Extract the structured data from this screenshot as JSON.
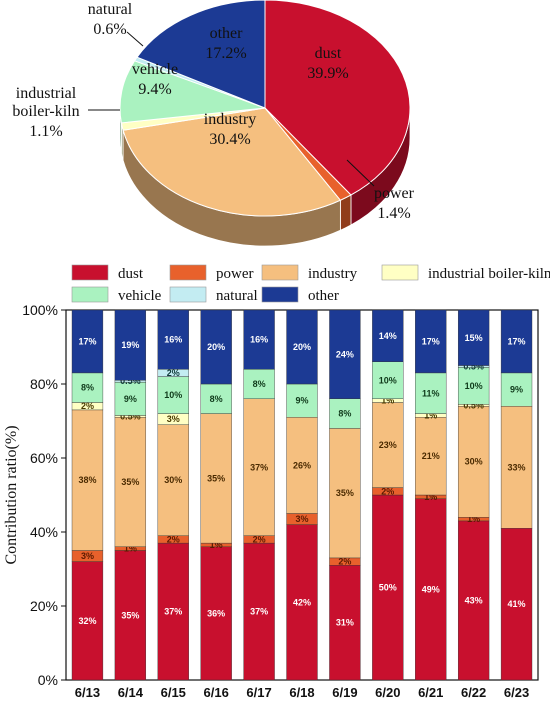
{
  "colors": {
    "dust": "#c8102e",
    "power": "#e8612c",
    "industry": "#f5bf7f",
    "industrial boiler-kiln": "#ffffc4",
    "vehicle": "#aaf2c0",
    "natural": "#c3ecf2",
    "other": "#1c3a94"
  },
  "chart_data": [
    {
      "type": "pie",
      "slices": [
        {
          "name": "dust",
          "label": "dust",
          "value_label": "39.9%",
          "value": 39.9
        },
        {
          "name": "power",
          "label": "power",
          "value_label": "1.4%",
          "value": 1.4
        },
        {
          "name": "industry",
          "label": "industry",
          "value_label": "30.4%",
          "value": 30.4
        },
        {
          "name": "industrial boiler-kiln",
          "label": "industrial boiler-kiln",
          "value_label": "1.1%",
          "value": 1.1
        },
        {
          "name": "vehicle",
          "label": "vehicle",
          "value_label": "9.4%",
          "value": 9.4
        },
        {
          "name": "natural",
          "label": "natural",
          "value_label": "0.6%",
          "value": 0.6
        },
        {
          "name": "other",
          "label": "other",
          "value_label": "17.2%",
          "value": 17.2
        }
      ]
    },
    {
      "type": "bar",
      "stacked": true,
      "ylabel": "Contribution ratio(%)",
      "ylim": [
        0,
        100
      ],
      "yticks": [
        "0%",
        "20%",
        "40%",
        "60%",
        "80%",
        "100%"
      ],
      "categories": [
        "6/13",
        "6/14",
        "6/15",
        "6/16",
        "6/17",
        "6/18",
        "6/19",
        "6/20",
        "6/21",
        "6/22",
        "6/23"
      ],
      "legend": [
        "dust",
        "power",
        "industry",
        "industrial boiler-kiln",
        "vehicle",
        "natural",
        "other"
      ],
      "series": [
        {
          "name": "dust",
          "values": [
            32,
            35,
            37,
            36,
            37,
            42,
            31,
            50,
            49,
            43,
            41
          ],
          "labels": [
            "32%",
            "35%",
            "37%",
            "36%",
            "37%",
            "42%",
            "31%",
            "50%",
            "49%",
            "43%",
            "41%"
          ]
        },
        {
          "name": "power",
          "values": [
            3,
            1,
            2,
            1,
            2,
            3,
            2,
            2,
            1,
            1,
            0
          ],
          "labels": [
            "3%",
            "1%",
            "2%",
            "1%",
            "2%",
            "3%",
            "2%",
            "2%",
            "1%",
            "1%",
            ""
          ]
        },
        {
          "name": "industry",
          "values": [
            38,
            35,
            30,
            35,
            37,
            26,
            35,
            23,
            21,
            30,
            33
          ],
          "labels": [
            "38%",
            "35%",
            "30%",
            "35%",
            "37%",
            "26%",
            "35%",
            "23%",
            "21%",
            "30%",
            "33%"
          ]
        },
        {
          "name": "industrial boiler-kiln",
          "values": [
            2,
            0.5,
            3,
            0,
            0,
            0,
            0,
            1,
            1,
            0.5,
            0
          ],
          "labels": [
            "2%",
            "0.5%",
            "3%",
            "",
            "",
            "",
            "",
            "1%",
            "1%",
            "0.5%",
            ""
          ]
        },
        {
          "name": "vehicle",
          "values": [
            8,
            9,
            10,
            8,
            8,
            9,
            8,
            10,
            11,
            10,
            9
          ],
          "labels": [
            "8%",
            "9%",
            "10%",
            "8%",
            "8%",
            "9%",
            "8%",
            "10%",
            "11%",
            "10%",
            "9%"
          ]
        },
        {
          "name": "natural",
          "values": [
            0,
            0.5,
            2,
            0,
            0,
            0,
            0,
            0,
            0,
            0.5,
            0
          ],
          "labels": [
            "",
            "0.5%",
            "2%",
            "",
            "",
            "",
            "",
            "",
            "",
            "0.5%",
            ""
          ]
        },
        {
          "name": "other",
          "values": [
            17,
            19,
            16,
            20,
            16,
            20,
            24,
            14,
            17,
            15,
            17
          ],
          "labels": [
            "17%",
            "19%",
            "16%",
            "20%",
            "16%",
            "20%",
            "24%",
            "14%",
            "17%",
            "15%",
            "17%"
          ]
        }
      ]
    }
  ]
}
